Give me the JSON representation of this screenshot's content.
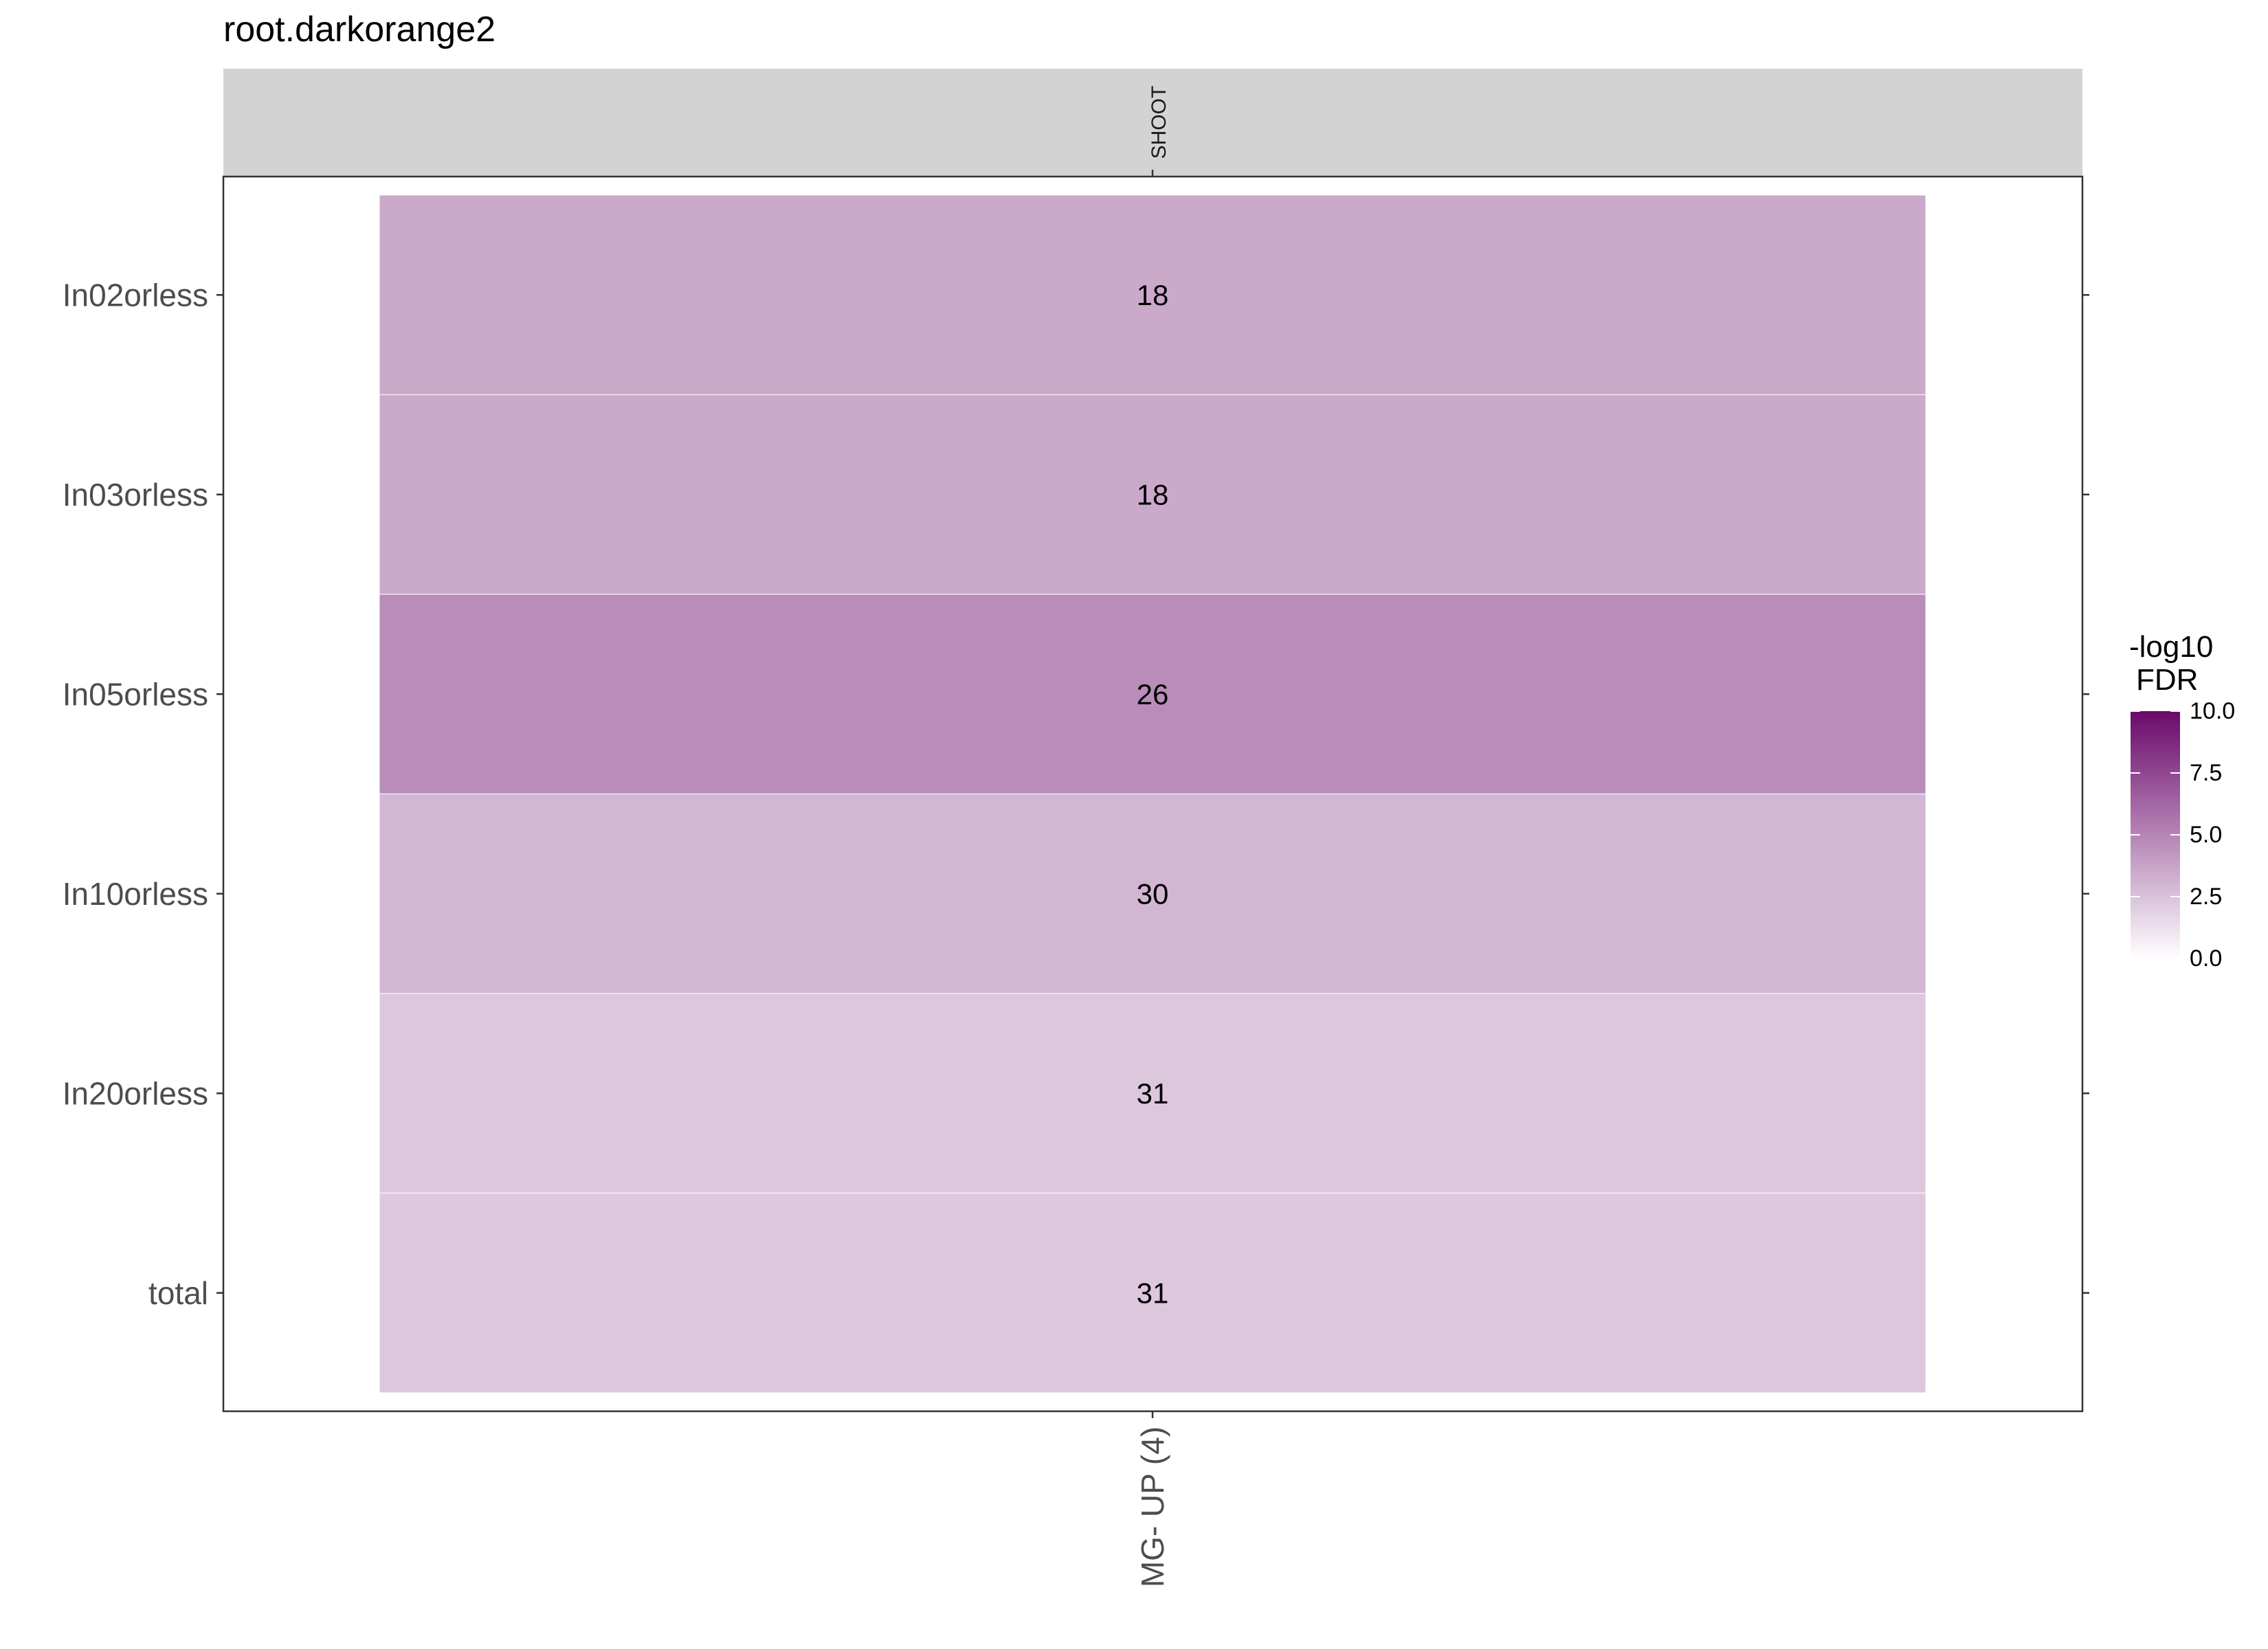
{
  "chart_data": {
    "type": "heatmap",
    "title": "root.darkorange2",
    "facet_label": "SHOOT",
    "x_categories": [
      "MG- UP (4)"
    ],
    "y_categories": [
      "In02orless",
      "In03orless",
      "In05orless",
      "In10orless",
      "In20orless",
      "total"
    ],
    "cells": [
      {
        "x": "MG- UP (4)",
        "y": "In02orless",
        "label": "18",
        "fdr_neglog10": 3.5
      },
      {
        "x": "MG- UP (4)",
        "y": "In03orless",
        "label": "18",
        "fdr_neglog10": 3.5
      },
      {
        "x": "MG- UP (4)",
        "y": "In05orless",
        "label": "26",
        "fdr_neglog10": 4.7
      },
      {
        "x": "MG- UP (4)",
        "y": "In10orless",
        "label": "30",
        "fdr_neglog10": 3.0
      },
      {
        "x": "MG- UP (4)",
        "y": "In20orless",
        "label": "31",
        "fdr_neglog10": 2.3
      },
      {
        "x": "MG- UP (4)",
        "y": "total",
        "label": "31",
        "fdr_neglog10": 2.3
      }
    ],
    "legend": {
      "title_line1": "-log10",
      "title_line2": "FDR",
      "range": [
        0,
        10
      ],
      "ticks": [
        "0.0",
        "2.5",
        "5.0",
        "7.5",
        "10.0"
      ],
      "tick_values": [
        0,
        2.5,
        5,
        7.5,
        10
      ],
      "low_color": "#ffffff",
      "high_color": "#6b0a6b",
      "position": "right"
    },
    "grid": false
  }
}
